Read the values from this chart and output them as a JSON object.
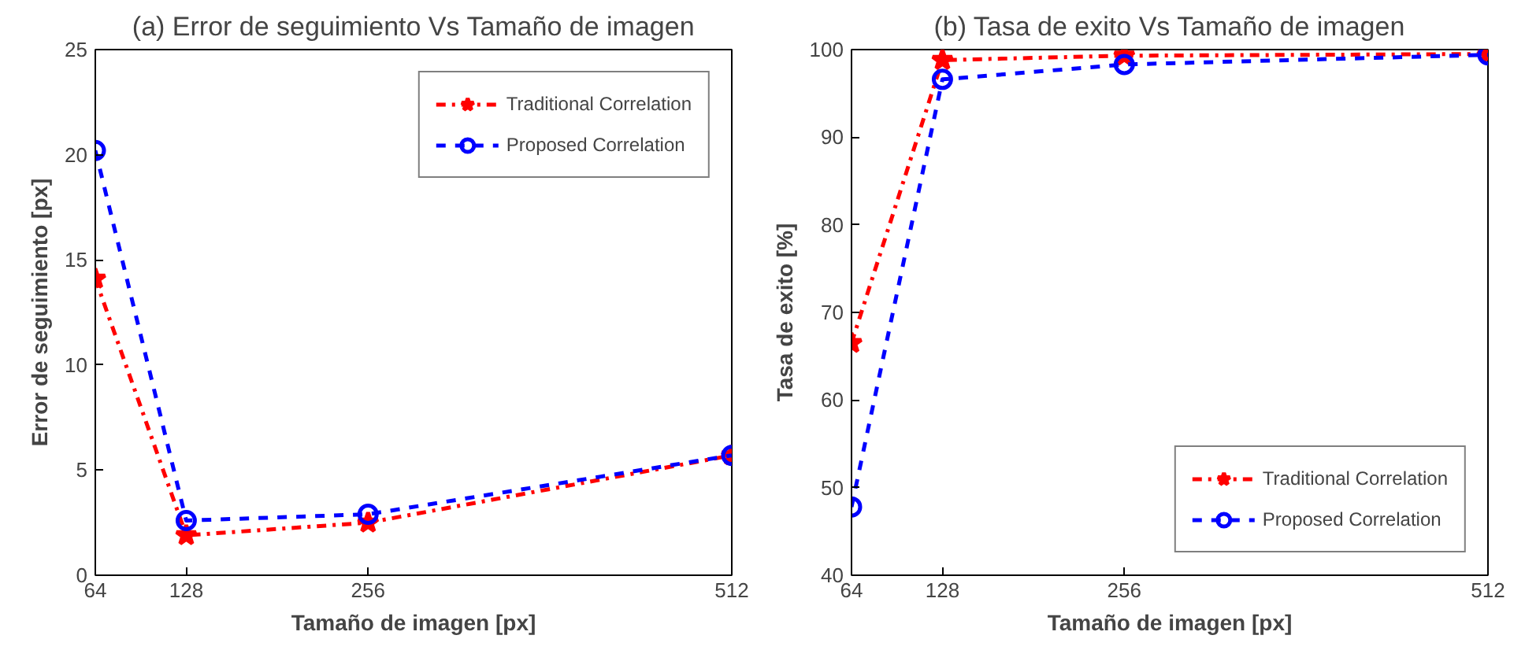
{
  "chart_data": [
    {
      "type": "line",
      "title": "(a) Error de seguimiento Vs Tamaño de imagen",
      "xlabel": "Tamaño de imagen [px]",
      "ylabel": "Error de seguimiento [px]",
      "x": [
        64,
        128,
        256,
        512
      ],
      "xlim": [
        64,
        512
      ],
      "xticks": [
        64,
        128,
        256,
        512
      ],
      "ylim": [
        0,
        25
      ],
      "yticks": [
        0,
        5,
        10,
        15,
        20,
        25
      ],
      "grid": false,
      "legend": "top right",
      "series": [
        {
          "name": "Traditional Correlation",
          "color": "#ff0000",
          "values": [
            14.1,
            1.9,
            2.5,
            5.7
          ],
          "marker": "star",
          "line_style": "dashdot"
        },
        {
          "name": "Proposed Correlation",
          "color": "#0000ff",
          "values": [
            20.2,
            2.6,
            2.9,
            5.7
          ],
          "marker": "circle",
          "line_style": "dashed"
        }
      ]
    },
    {
      "type": "line",
      "title": "(b) Tasa de exito Vs Tamaño de imagen",
      "xlabel": "Tamaño de imagen [px]",
      "ylabel": "Tasa de exito [%]",
      "x": [
        64,
        128,
        256,
        512
      ],
      "xlim": [
        64,
        512
      ],
      "xticks": [
        64,
        128,
        256,
        512
      ],
      "ylim": [
        40,
        100
      ],
      "yticks": [
        40,
        50,
        60,
        70,
        80,
        90,
        100
      ],
      "grid": false,
      "legend": "bottom right",
      "series": [
        {
          "name": "Traditional Correlation",
          "color": "#ff0000",
          "values": [
            66.5,
            98.8,
            99.3,
            99.5
          ],
          "marker": "star",
          "line_style": "dashdot"
        },
        {
          "name": "Proposed Correlation",
          "color": "#0000ff",
          "values": [
            47.8,
            96.6,
            98.3,
            99.4
          ],
          "marker": "circle",
          "line_style": "dashed"
        }
      ]
    }
  ]
}
